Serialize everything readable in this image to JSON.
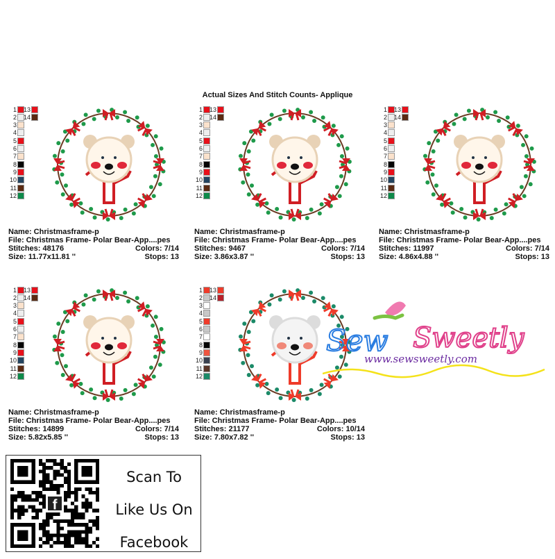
{
  "title": "Actual Sizes And Stitch Counts- Applique",
  "palettes": {
    "standard": [
      "#e8101a",
      "#eeeeee",
      "#fbe2cc",
      "#eeeeee",
      "#e8101a",
      "#eeeeee",
      "#fbe2cc",
      "#050505",
      "#e8101a",
      "#234460",
      "#5a2a12",
      "#0e8a4a",
      "#e8101a",
      "#5a2a12"
    ],
    "alt": [
      "#ef3b2a",
      "#c8c8c8",
      "#ffffff",
      "#c8c8c8",
      "#ef3b2a",
      "#c8c8c8",
      "#ffffff",
      "#050505",
      "#ef5540",
      "#3a4150",
      "#5a3628",
      "#1b8a68",
      "#ef3b2a",
      "#b8202a"
    ]
  },
  "designs": [
    {
      "name": "Name: Christmasframe-p",
      "file": "File: Christmas Frame- Polar Bear-App....pes",
      "stitches": "Stitches: 48176",
      "colors": "Colors: 7/14",
      "size": "Size: 11.77x11.81 ''",
      "stops": "Stops: 13",
      "palette": "standard"
    },
    {
      "name": "Name: Christmasframe-p",
      "file": "File: Christmas Frame- Polar Bear-App....pes",
      "stitches": "Stitches: 9467",
      "colors": "Colors: 7/14",
      "size": "Size: 3.86x3.87 ''",
      "stops": "Stops: 13",
      "palette": "standard"
    },
    {
      "name": "Name: Christmasframe-p",
      "file": "File: Christmas Frame- Polar Bear-App....pes",
      "stitches": "Stitches: 11997",
      "colors": "Colors: 7/14",
      "size": "Size: 4.86x4.88 ''",
      "stops": "Stops: 13",
      "palette": "standard"
    },
    {
      "name": "Name: Christmasframe-p",
      "file": "File: Christmas Frame- Polar Bear-App....pes",
      "stitches": "Stitches: 14899",
      "colors": "Colors: 7/14",
      "size": "Size: 5.82x5.85 ''",
      "stops": "Stops: 13",
      "palette": "standard"
    },
    {
      "name": "Name: Christmasframe-p",
      "file": "File: Christmas Frame- Polar Bear-App....pes",
      "stitches": "Stitches: 21177",
      "colors": "Colors: 10/14",
      "size": "Size: 7.80x7.82 ''",
      "stops": "Stops: 13",
      "palette": "alt"
    }
  ],
  "qr": {
    "line1": "Scan To",
    "line2": "Like Us On",
    "line3": "Facebook"
  },
  "logo": {
    "brand": "Sew Sweetly",
    "url": "www.sewsweetly.com"
  }
}
